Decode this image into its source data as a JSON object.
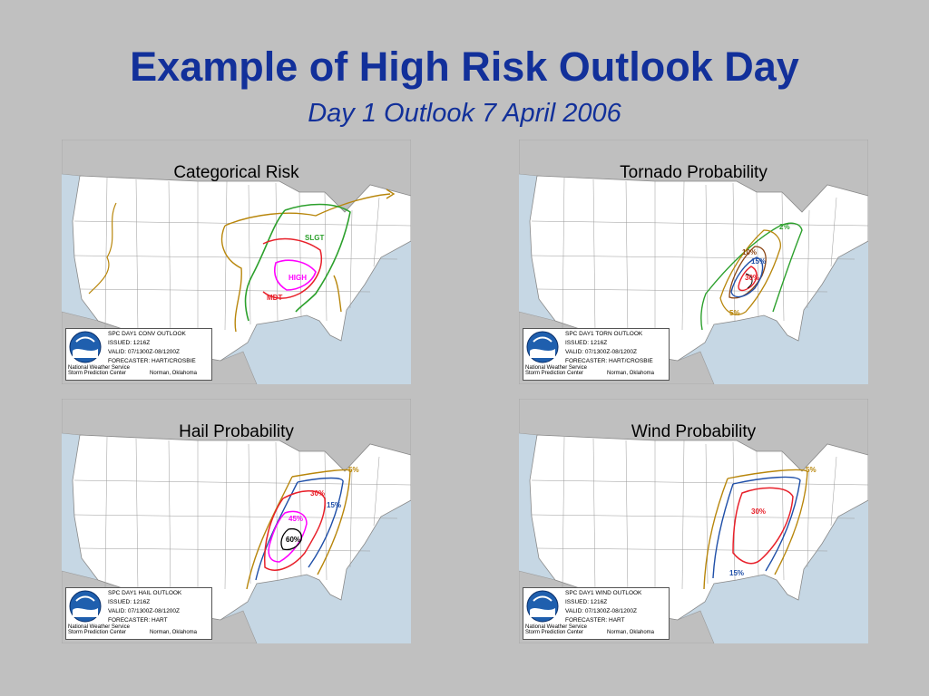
{
  "title": "Example of High Risk Outlook Day",
  "subtitle": "Day 1 Outlook  7 April 2006",
  "colors": {
    "background": "#c0c0c0",
    "title": "#12309a",
    "land": "#ffffff",
    "water": "#c6d7e4",
    "foreign_land": "#bfbfbf",
    "tstm": "#b8860b",
    "slight": "#2ca02c",
    "moderate": "#e8202a",
    "high": "#ff00ff",
    "blue": "#1f4fa8"
  },
  "panels": [
    {
      "title": "Categorical Risk",
      "outlook_line": "SPC DAY1 CONV OUTLOOK",
      "issued": "ISSUED: 1216Z",
      "valid": "VALID: 07/1300Z-08/1200Z",
      "forecaster": "FORECASTER: HART/CROSBIE",
      "org1": "National Weather Service",
      "org2": "Storm Prediction Center",
      "city": "Norman, Oklahoma",
      "labels": [
        "SLGT",
        "HIGH",
        "MDT"
      ]
    },
    {
      "title": "Tornado Probability",
      "outlook_line": "SPC DAY1 TORN OUTLOOK",
      "issued": "ISSUED: 1216Z",
      "valid": "VALID: 07/1300Z-08/1200Z",
      "forecaster": "FORECASTER: HART/CROSBIE",
      "org1": "National Weather Service",
      "org2": "Storm Prediction Center",
      "city": "Norman, Oklahoma",
      "labels": [
        "2%",
        "10%",
        "15%",
        "30%",
        "5%"
      ]
    },
    {
      "title": "Hail Probability",
      "outlook_line": "SPC DAY1 HAIL OUTLOOK",
      "issued": "ISSUED: 1216Z",
      "valid": "VALID: 07/1300Z-08/1200Z",
      "forecaster": "FORECASTER: HART",
      "org1": "National Weather Service",
      "org2": "Storm Prediction Center",
      "city": "Norman, Oklahoma",
      "labels": [
        "5%",
        "30%",
        "15%",
        "45%",
        "60%"
      ]
    },
    {
      "title": "Wind Probability",
      "outlook_line": "SPC DAY1 WIND OUTLOOK",
      "issued": "ISSUED: 1216Z",
      "valid": "VALID: 07/1300Z-08/1200Z",
      "forecaster": "FORECASTER: HART",
      "org1": "National Weather Service",
      "org2": "Storm Prediction Center",
      "city": "Norman, Oklahoma",
      "labels": [
        "5%",
        "30%",
        "15%"
      ]
    }
  ]
}
